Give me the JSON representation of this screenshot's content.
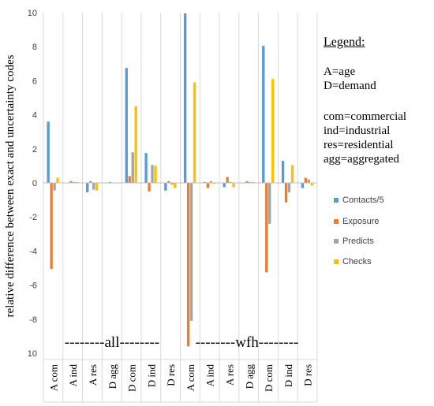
{
  "chart_data": {
    "type": "bar",
    "title": "",
    "xlabel": "",
    "ylabel": "relative difference between exact and uncertainty codes",
    "ylim": [
      -10,
      10
    ],
    "yticks": [
      10,
      8,
      6,
      4,
      2,
      0,
      -2,
      -4,
      -6,
      -8,
      10
    ],
    "grid": true,
    "legend_position": "right",
    "categories": [
      "A com",
      "A ind",
      "A res",
      "D agg",
      "D com",
      "D ind",
      "D res",
      "A com",
      "A ind",
      "A res",
      "D agg",
      "D com",
      "D ind",
      "D res"
    ],
    "groups": [
      "--------all--------",
      "--------wfh--------"
    ],
    "series": [
      {
        "name": "Contacts/5",
        "color": "#5b9bd5",
        "values": [
          3.6,
          0.0,
          -0.55,
          0.0,
          6.75,
          1.75,
          -0.45,
          9.95,
          0.05,
          -0.25,
          0.0,
          8.05,
          1.3,
          -0.3
        ]
      },
      {
        "name": "Exposure",
        "color": "#ed7d31",
        "values": [
          -5.05,
          0.1,
          0.1,
          0.05,
          0.4,
          -0.5,
          0.1,
          -9.6,
          -0.3,
          0.35,
          0.1,
          -5.25,
          -1.15,
          0.3
        ]
      },
      {
        "name": "Predicts",
        "color": "#a5a5a5",
        "values": [
          -0.45,
          0.05,
          -0.4,
          0.0,
          1.8,
          1.05,
          -0.1,
          -8.1,
          0.1,
          0.05,
          0.05,
          -2.4,
          -0.55,
          0.2
        ]
      },
      {
        "name": "Checks",
        "color": "#ffc000",
        "values": [
          0.3,
          0.05,
          -0.45,
          0.0,
          4.5,
          1.0,
          -0.3,
          5.9,
          -0.05,
          -0.25,
          0.05,
          6.1,
          1.05,
          -0.15
        ]
      }
    ]
  },
  "notes": {
    "legend_title": "Legend:",
    "lines": [
      "A=age",
      "D=demand",
      "com=commercial",
      "ind=industrial",
      "res=residential",
      "agg=aggregated"
    ]
  }
}
